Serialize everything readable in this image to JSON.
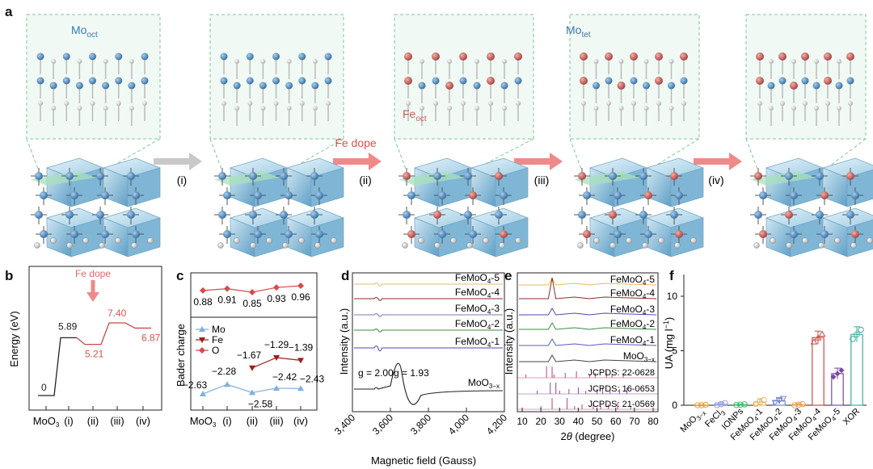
{
  "panel_a": {
    "label": "a",
    "mo_oct": {
      "main": "Mo",
      "sub": "oct"
    },
    "mo_tet": {
      "main": "Mo",
      "sub": "tet"
    },
    "fe_oct": {
      "main": "Fe",
      "sub": "oct"
    },
    "steps": [
      "(i)",
      "(ii)",
      "(iii)",
      "(iv)"
    ],
    "fe_dope": "Fe dope",
    "colors": {
      "mo": "#4a86bd",
      "fe": "#c95b5b",
      "o": "#dcdcdc",
      "gray_arrow": "#c8c8c8",
      "red_arrow": "#f08a8a",
      "cube": "#8fc3dd",
      "inset_border": "#7bc99a",
      "inset_bg": "#eef8f1"
    }
  },
  "panel_b": {
    "label": "b",
    "ylabel": "Energy (eV)",
    "fe_dope": "Fe dope",
    "chart_data": {
      "type": "line",
      "categories": [
        "MoO3",
        "(i)",
        "(ii)",
        "(iii)",
        "(iv)"
      ],
      "series": [
        {
          "values": [
            0,
            5.89,
            5.21,
            7.4,
            6.87
          ]
        }
      ],
      "labels": [
        "0",
        "5.89",
        "5.21",
        "7.40",
        "6.87"
      ]
    },
    "xlabels": [
      {
        "main": "MoO",
        "sub": "3"
      },
      {
        "main": "(i)"
      },
      {
        "main": "(ii)"
      },
      {
        "main": "(iii)"
      },
      {
        "main": "(iv)"
      }
    ]
  },
  "panel_c": {
    "label": "c",
    "ylabel": "Bader charge",
    "legend": [
      "Mo",
      "Fe",
      "O"
    ],
    "chart_data": {
      "type": "line",
      "categories": [
        "MoO3",
        "(i)",
        "(ii)",
        "(iii)",
        "(iv)"
      ],
      "series": [
        {
          "name": "Mo",
          "values": [
            -2.63,
            -2.28,
            -2.58,
            -2.42,
            -2.43
          ],
          "labels": [
            "−2.63",
            "−2.28",
            "−2.58",
            "−2.42",
            "−2.43"
          ]
        },
        {
          "name": "Fe",
          "values": [
            null,
            null,
            -1.67,
            -1.29,
            -1.39
          ],
          "labels": [
            "",
            "",
            "−1.67",
            "−1.29",
            "−1.39"
          ]
        },
        {
          "name": "O",
          "values": [
            0.88,
            0.91,
            0.85,
            0.93,
            0.96
          ],
          "labels": [
            "0.88",
            "0.91",
            "0.85",
            "0.93",
            "0.96"
          ]
        }
      ]
    },
    "colors": {
      "mo": "#7fb0dd",
      "fe": "#9e1f1f",
      "o": "#d94a4a"
    }
  },
  "panel_d": {
    "label": "d",
    "ylabel": "Intensity (a.u.)",
    "xlabel": "Magnetic field (Gauss)",
    "xticks": [
      "3,400",
      "3,600",
      "3,800",
      "4,000",
      "4,200"
    ],
    "xlim": [
      3400,
      4200
    ],
    "traces": [
      {
        "main": "FeMoO",
        "sub": "4",
        "suffix": "-5",
        "color": "#e6b96a"
      },
      {
        "main": "FeMoO",
        "sub": "4",
        "suffix": "-4",
        "color": "#8e2b2b"
      },
      {
        "main": "FeMoO",
        "sub": "4",
        "suffix": "-3",
        "color": "#8a73b0"
      },
      {
        "main": "FeMoO",
        "sub": "4",
        "suffix": "-2",
        "color": "#3d8a3d"
      },
      {
        "main": "FeMoO",
        "sub": "4",
        "suffix": "-1",
        "color": "#4b4bb0"
      },
      {
        "main": "MoO",
        "sub": "3−x",
        "suffix": "",
        "color": "#222222"
      }
    ],
    "g1": "g = 2.00",
    "g2": "g = 1.93"
  },
  "panel_e": {
    "label": "e",
    "ylabel": "Intensity (a.u.)",
    "xlabel_main": "2",
    "xlabel_theta": "θ",
    "xlabel_rest": " (degree)",
    "xticks": [
      "10",
      "20",
      "30",
      "40",
      "50",
      "60",
      "70",
      "80"
    ],
    "xlim": [
      10,
      80
    ],
    "traces": [
      {
        "main": "FeMoO",
        "sub": "4",
        "suffix": "-5",
        "color": "#e6b96a"
      },
      {
        "main": "FeMoO",
        "sub": "4",
        "suffix": "-4",
        "color": "#8e2b2b"
      },
      {
        "main": "FeMoO",
        "sub": "4",
        "suffix": "-3",
        "color": "#4b4bb0"
      },
      {
        "main": "FeMoO",
        "sub": "4",
        "suffix": "-2",
        "color": "#3d8a3d"
      },
      {
        "main": "FeMoO",
        "sub": "4",
        "suffix": "-1",
        "color": "#5a5ab8"
      },
      {
        "main": "MoO",
        "sub": "3−x",
        "suffix": "",
        "color": "#444444"
      }
    ],
    "jcpds": [
      {
        "text": "JCPDS: 22-0628",
        "color": "#c0407a"
      },
      {
        "text": "JCPDS: 16-0653",
        "color": "#8a4a9a"
      },
      {
        "text": "JCPDS: 21-0569",
        "color": "#c0407a"
      }
    ]
  },
  "panel_f": {
    "label": "f",
    "ylabel_main": "UA (mg l",
    "ylabel_sup": "−1",
    "ylabel_end": ")",
    "yticks": [
      "0",
      "5",
      "10"
    ],
    "chart_data": {
      "type": "bar",
      "ylim": [
        0,
        12
      ],
      "categories": [
        {
          "main": "MoO",
          "sub": "3−x",
          "suffix": ""
        },
        {
          "main": "FeCl",
          "sub": "3",
          "suffix": ""
        },
        {
          "main": "IONPs",
          "sub": "",
          "suffix": ""
        },
        {
          "main": "FeMoO",
          "sub": "4",
          "suffix": "-1"
        },
        {
          "main": "FeMoO",
          "sub": "4",
          "suffix": "-2"
        },
        {
          "main": "FeMoO",
          "sub": "4",
          "suffix": "-3"
        },
        {
          "main": "FeMoO",
          "sub": "4",
          "suffix": "-4"
        },
        {
          "main": "FeMoO",
          "sub": "4",
          "suffix": "-5"
        },
        {
          "main": "XOR",
          "sub": "",
          "suffix": ""
        }
      ],
      "values": [
        0.0,
        0.1,
        0.05,
        0.3,
        0.4,
        0.05,
        6.2,
        2.9,
        6.5
      ],
      "errors": [
        0.05,
        0.15,
        0.05,
        0.3,
        0.3,
        0.1,
        0.6,
        0.5,
        0.7
      ],
      "colors": [
        "#e6a23c",
        "#9aa0e0",
        "#3cbc6a",
        "#e6b96a",
        "#7a86c8",
        "#f0a050",
        "#d04848",
        "#7a4aa0",
        "#3ab0a0"
      ]
    }
  }
}
